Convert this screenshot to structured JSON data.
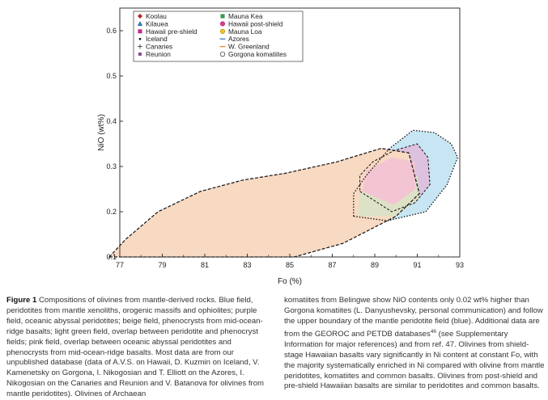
{
  "figure": {
    "chart_data": {
      "type": "scatter",
      "title": "",
      "xlabel": "Fo (%)",
      "ylabel": "NiO (wt%)",
      "xlim": [
        77,
        93
      ],
      "ylim": [
        0.1,
        0.65
      ],
      "xticks": [
        77,
        79,
        81,
        83,
        85,
        87,
        89,
        91,
        93
      ],
      "yticks": [
        0.1,
        0.2,
        0.3,
        0.4,
        0.5,
        0.6
      ],
      "xtick_labels": [
        "77",
        "79",
        "81",
        "83",
        "85",
        "87",
        "89",
        "91",
        "93"
      ],
      "ytick_labels": [
        "0.1",
        "0.2",
        "0.3",
        "0.4",
        "0.5",
        "0.6"
      ],
      "grid": false,
      "legend_position": "top-left",
      "fields": [
        {
          "name": "peridotite",
          "color": "#c7e5f3",
          "polygon": [
            [
              88.0,
              0.19
            ],
            [
              89.6,
              0.18
            ],
            [
              91.4,
              0.2
            ],
            [
              92.4,
              0.26
            ],
            [
              92.9,
              0.32
            ],
            [
              92.6,
              0.35
            ],
            [
              91.8,
              0.375
            ],
            [
              90.8,
              0.38
            ],
            [
              89.7,
              0.34
            ],
            [
              88.6,
              0.28
            ],
            [
              88.0,
              0.24
            ]
          ]
        },
        {
          "name": "abyssal-peridotite",
          "color": "#dcc2de",
          "polygon": [
            [
              88.3,
              0.245
            ],
            [
              89.8,
              0.2
            ],
            [
              90.9,
              0.22
            ],
            [
              91.6,
              0.26
            ],
            [
              91.5,
              0.32
            ],
            [
              91.0,
              0.35
            ],
            [
              89.9,
              0.335
            ],
            [
              88.9,
              0.31
            ],
            [
              88.3,
              0.28
            ]
          ]
        },
        {
          "name": "phenocryst",
          "color": "#f8d9c2",
          "polygon": [
            [
              76.5,
              0.1
            ],
            [
              82.0,
              0.1
            ],
            [
              85.2,
              0.1
            ],
            [
              87.5,
              0.13
            ],
            [
              90.0,
              0.19
            ],
            [
              91.1,
              0.24
            ],
            [
              90.6,
              0.33
            ],
            [
              89.3,
              0.34
            ],
            [
              87.2,
              0.31
            ],
            [
              84.8,
              0.285
            ],
            [
              82.8,
              0.27
            ],
            [
              80.8,
              0.245
            ],
            [
              78.8,
              0.2
            ],
            [
              77.3,
              0.14
            ]
          ]
        },
        {
          "name": "overlap-peridotite-phenocryst",
          "color": "#dde2c7",
          "polygon": [
            [
              88.2,
              0.19
            ],
            [
              90.0,
              0.19
            ],
            [
              91.1,
              0.23
            ],
            [
              91.0,
              0.28
            ],
            [
              89.6,
              0.28
            ],
            [
              88.3,
              0.24
            ]
          ]
        },
        {
          "name": "overlap-abyssal-phenocryst",
          "color": "#f3c5d2",
          "polygon": [
            [
              88.4,
              0.245
            ],
            [
              89.9,
              0.215
            ],
            [
              90.9,
              0.25
            ],
            [
              90.9,
              0.31
            ],
            [
              89.8,
              0.32
            ],
            [
              88.6,
              0.29
            ]
          ]
        }
      ],
      "series": [
        {
          "name": "Koolau",
          "marker": "diamond",
          "color": "#c0232d",
          "stroke": "#7a1017"
        },
        {
          "name": "Kilauea",
          "marker": "triangle",
          "color": "#2a78c4",
          "stroke": "#1a4f85"
        },
        {
          "name": "Hawaii pre-shield",
          "marker": "square",
          "color": "#d3238c",
          "stroke": "#8c1459"
        },
        {
          "name": "Iceland",
          "marker": "dot",
          "color": "#111111",
          "stroke": "#111111"
        },
        {
          "name": "Canaries",
          "marker": "plus",
          "color": "#222222",
          "stroke": "#222222"
        },
        {
          "name": "Reunion",
          "marker": "square-small",
          "color": "#8e3d9a",
          "stroke": "#5c2265"
        },
        {
          "name": "Mauna Kea",
          "marker": "square",
          "color": "#2fa14a",
          "stroke": "#1c6b2f"
        },
        {
          "name": "Hawaii post-shield",
          "marker": "circle",
          "color": "#e2358d",
          "stroke": "#951e5c"
        },
        {
          "name": "Mauna Loa",
          "marker": "circle",
          "color": "#f1c418",
          "stroke": "#8c7008"
        },
        {
          "name": "Azores",
          "marker": "dash",
          "color": "#4682c6",
          "stroke": "#4682c6"
        },
        {
          "name": "W. Greenland",
          "marker": "dash",
          "color": "#e2962c",
          "stroke": "#e2962c"
        },
        {
          "name": "Gorgona komatiites",
          "marker": "circle-open",
          "color": "#ffffff",
          "stroke": "#333333"
        }
      ]
    }
  },
  "caption": {
    "left": {
      "label": "Figure 1",
      "text": " Compositions of olivines from mantle-derived rocks. Blue field, peridotites from mantle xenoliths, orogenic massifs and ophiolites; purple field, oceanic abyssal peridotites; beige field, phenocrysts from mid-ocean-ridge basalts; light green field, overlap between peridotite and phenocryst fields; pink field, overlap between oceanic abyssal peridotites and phenocrysts from mid-ocean-ridge basalts. Most data are from our unpublished database (data of A.V.S. on Hawaii, D. Kuzmin on Iceland, V. Kamenetsky on Gorgona, I. Nikogosian and T. Elliott on the Azores, I. Nikogosian on the Canaries and Reunion and V. Batanova for olivines from mantle peridotites). Olivines of Archaean"
    },
    "right": {
      "text_before": "komatiites from Belingwe show NiO contents only 0.02 wt% higher than Gorgona komatiites (L. Danyushevsky, personal communication) and follow the upper boundary of the mantle peridotite field (blue). Additional data are from the GEOROC and PETDB databases",
      "ref": "46",
      "text_after": " (see Supplementary Information for major references) and from ref. 47. Olivines from shield-stage Hawaiian basalts vary significantly in Ni content at constant Fo, with the majority systematically enriched in Ni compared with olivine from mantle peridotites, komatiites and common basalts. Olivines from post-shield and pre-shield Hawaiian basalts are similar to peridotites and common basalts."
    }
  }
}
